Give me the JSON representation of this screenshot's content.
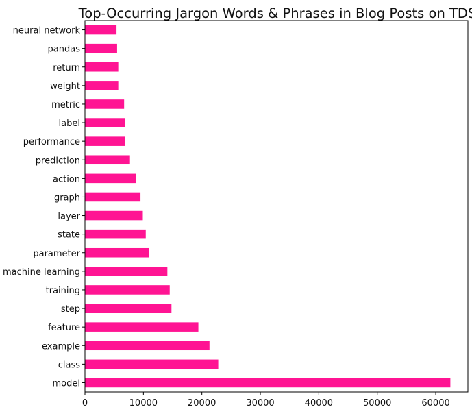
{
  "chart_data": {
    "type": "bar",
    "orientation": "horizontal",
    "title": "Top-Occurring Jargon Words & Phrases in Blog Posts on TDS",
    "xlabel": "",
    "ylabel": "",
    "xlim": [
      0,
      65500
    ],
    "x_ticks": [
      0,
      10000,
      20000,
      30000,
      40000,
      50000,
      60000
    ],
    "x_tick_labels": [
      "0",
      "10000",
      "20000",
      "30000",
      "40000",
      "50000",
      "60000"
    ],
    "grid": false,
    "legend": "none",
    "bar_color": "#ff1493",
    "categories": [
      "neural network",
      "pandas",
      "return",
      "weight",
      "metric",
      "label",
      "performance",
      "prediction",
      "action",
      "graph",
      "layer",
      "state",
      "parameter",
      "machine learning",
      "training",
      "step",
      "feature",
      "example",
      "class",
      "model"
    ],
    "values": [
      5400,
      5500,
      5700,
      5700,
      6700,
      6900,
      6900,
      7700,
      8700,
      9500,
      9900,
      10400,
      10900,
      14100,
      14500,
      14800,
      19400,
      21300,
      22800,
      62500
    ]
  }
}
